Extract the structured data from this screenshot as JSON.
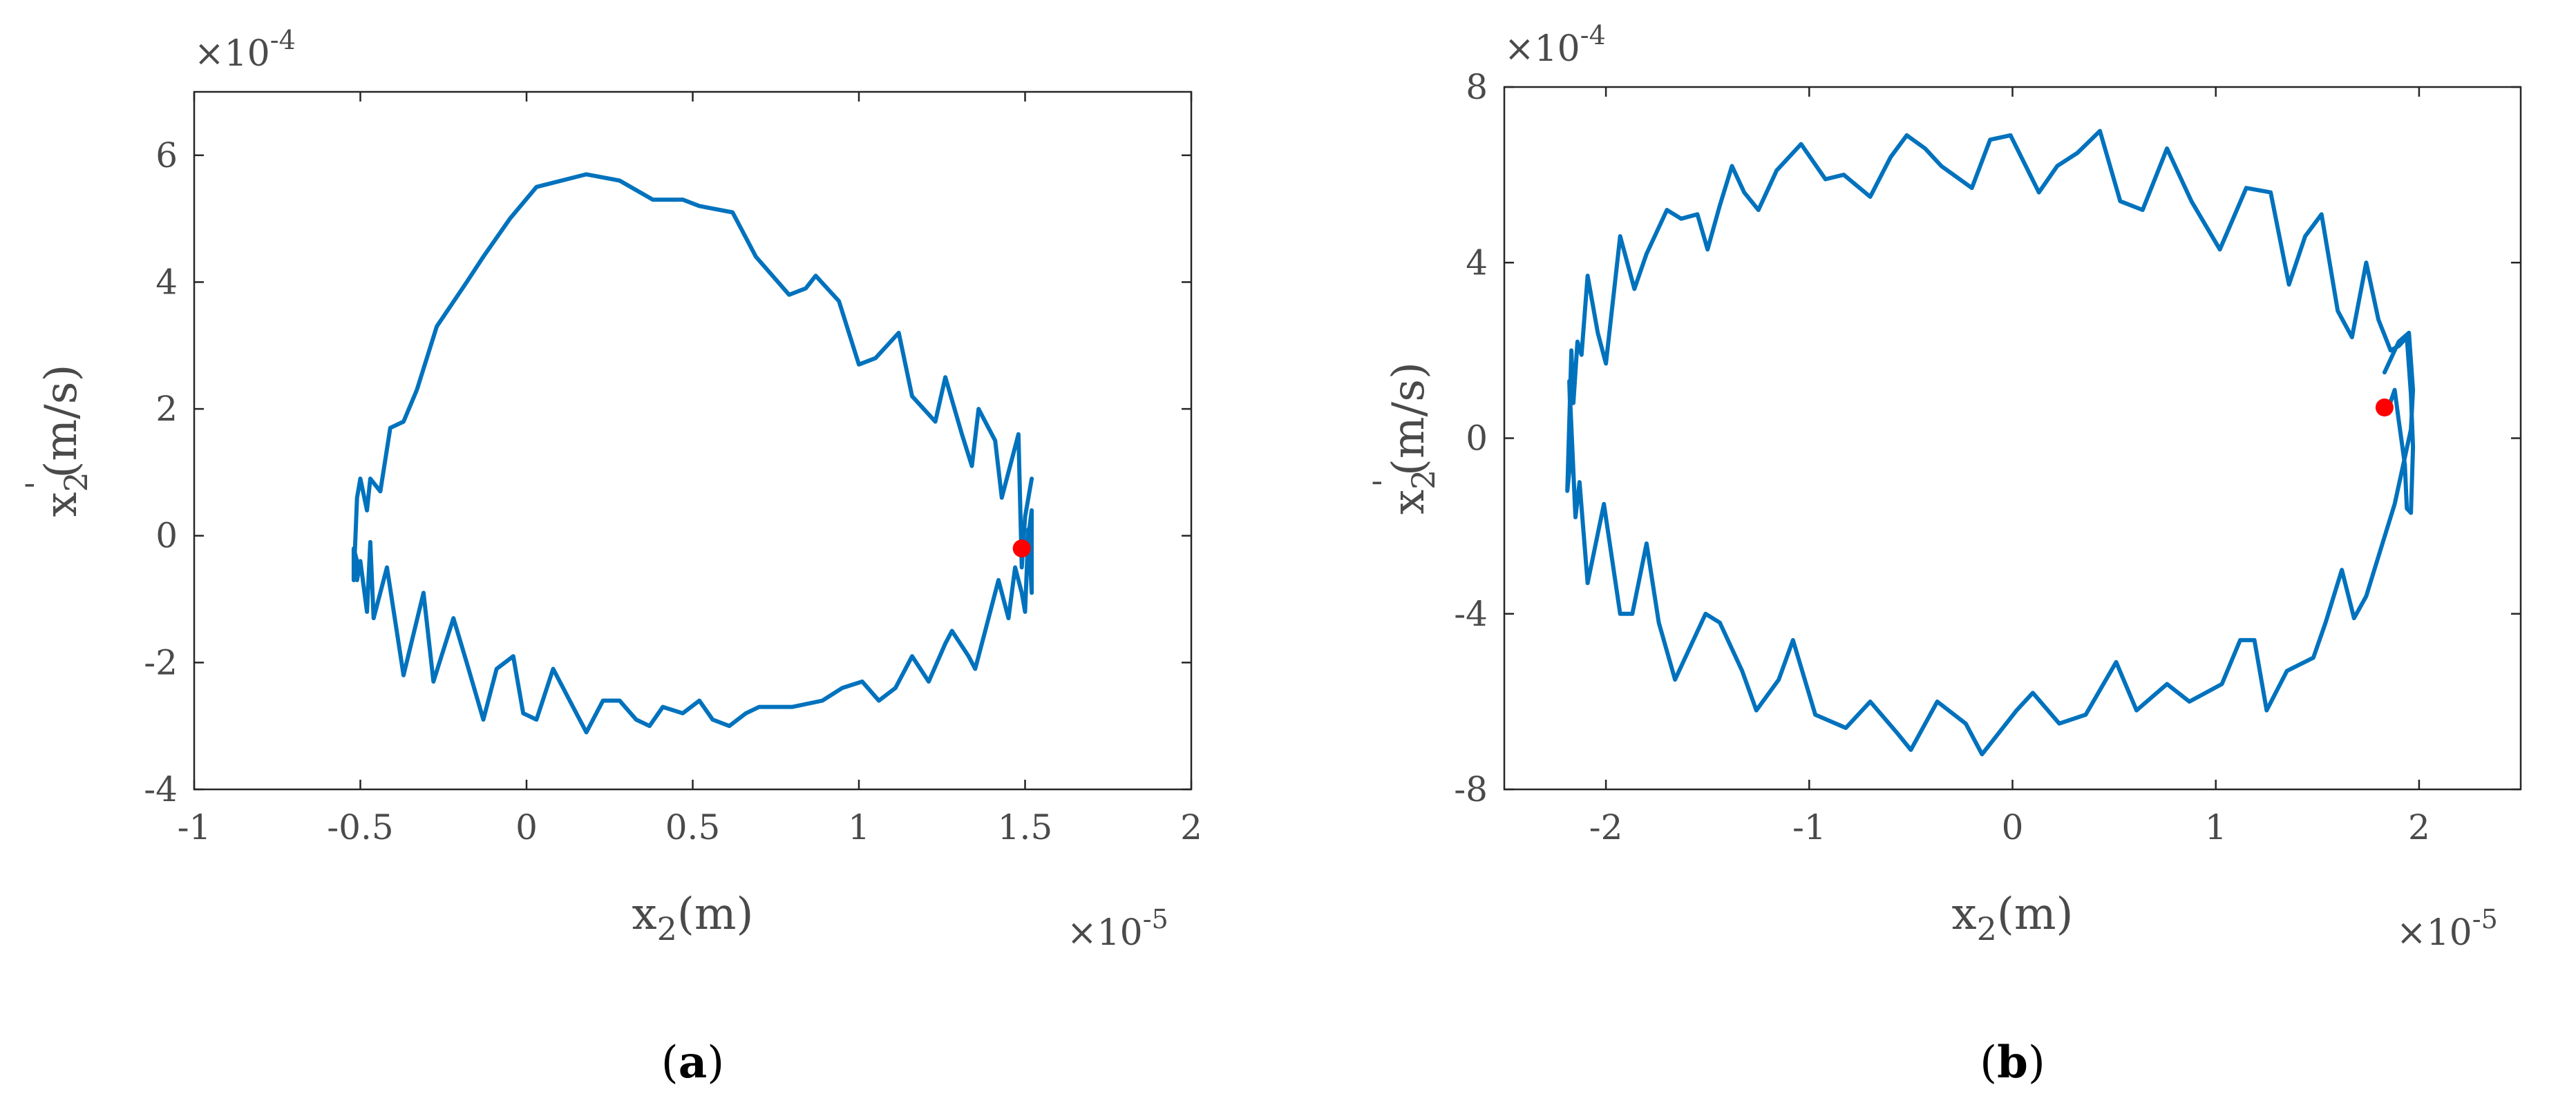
{
  "chart_data": [
    {
      "type": "line",
      "panel_label": "a",
      "xlabel": "x",
      "xlabel_sub": "2",
      "xlabel_unit": "(m)",
      "ylabel": "x",
      "ylabel_sub": "2",
      "ylabel_prime": "'",
      "ylabel_unit": "(m/s)",
      "x_multiplier": "×10",
      "x_exponent": "-5",
      "y_multiplier": "×10",
      "y_exponent": "-4",
      "xlim": [
        -1,
        2
      ],
      "ylim": [
        -4,
        7
      ],
      "xticks": [
        -1,
        -0.5,
        0,
        0.5,
        1,
        1.5,
        2
      ],
      "xtick_labels": [
        "-1",
        "-0.5",
        "0",
        "0.5",
        "1",
        "1.5",
        "2"
      ],
      "yticks": [
        -4,
        -2,
        0,
        2,
        4,
        6
      ],
      "ytick_labels": [
        "-4",
        "-2",
        "0",
        "2",
        "4",
        "6"
      ],
      "line_color": "#0072BD",
      "marker_color": "#FF0000",
      "series": [
        {
          "x": [
            1.52,
            1.5,
            1.49,
            1.48,
            1.43,
            1.41,
            1.36,
            1.34,
            1.31,
            1.26,
            1.23,
            1.16,
            1.12,
            1.05,
            1.0,
            0.94,
            0.87,
            0.84,
            0.79,
            0.69,
            0.62,
            0.52,
            0.47,
            0.38,
            0.28,
            0.18,
            0.03,
            -0.05,
            -0.13,
            -0.18,
            -0.27,
            -0.33,
            -0.37,
            -0.41,
            -0.44,
            -0.47,
            -0.48,
            -0.5,
            -0.51,
            -0.52,
            -0.52,
            -0.51,
            -0.51,
            -0.5,
            -0.48,
            -0.47,
            -0.46,
            -0.42,
            -0.37,
            -0.31,
            -0.28,
            -0.22,
            -0.18,
            -0.13,
            -0.09,
            -0.04,
            -0.01,
            0.03,
            0.08,
            0.14,
            0.18,
            0.23,
            0.28,
            0.33,
            0.37,
            0.41,
            0.47,
            0.52,
            0.56,
            0.61,
            0.66,
            0.7,
            0.8,
            0.89,
            0.95,
            1.01,
            1.06,
            1.11,
            1.16,
            1.21,
            1.26,
            1.28,
            1.33,
            1.35,
            1.38,
            1.42,
            1.45,
            1.47,
            1.49,
            1.5,
            1.51,
            1.52,
            1.52,
            1.51,
            1.5,
            1.49
          ],
          "y": [
            0.9,
            0.3,
            -0.5,
            1.6,
            0.6,
            1.5,
            2.0,
            1.1,
            1.6,
            2.5,
            1.8,
            2.2,
            3.2,
            2.8,
            2.7,
            3.7,
            4.1,
            3.9,
            3.8,
            4.4,
            5.1,
            5.2,
            5.3,
            5.3,
            5.6,
            5.7,
            5.5,
            5.0,
            4.4,
            4.0,
            3.3,
            2.3,
            1.8,
            1.7,
            0.7,
            0.9,
            0.4,
            0.9,
            0.6,
            -0.7,
            -0.2,
            -0.4,
            -0.7,
            -0.4,
            -1.2,
            -0.1,
            -1.3,
            -0.5,
            -2.2,
            -0.9,
            -2.3,
            -1.3,
            -2.0,
            -2.9,
            -2.1,
            -1.9,
            -2.8,
            -2.9,
            -2.1,
            -2.7,
            -3.1,
            -2.6,
            -2.6,
            -2.9,
            -3.0,
            -2.7,
            -2.8,
            -2.6,
            -2.9,
            -3.0,
            -2.8,
            -2.7,
            -2.7,
            -2.6,
            -2.4,
            -2.3,
            -2.6,
            -2.4,
            -1.9,
            -2.3,
            -1.7,
            -1.5,
            -1.9,
            -2.1,
            -1.5,
            -0.7,
            -1.3,
            -0.5,
            -0.9,
            -1.2,
            0.1,
            -0.9,
            0.4,
            0.0,
            -0.2,
            -0.2
          ]
        }
      ],
      "marker": {
        "x": 1.49,
        "y": -0.2
      }
    },
    {
      "type": "line",
      "panel_label": "b",
      "xlabel": "x",
      "xlabel_sub": "2",
      "xlabel_unit": "(m)",
      "ylabel": "x",
      "ylabel_sub": "2",
      "ylabel_prime": "'",
      "ylabel_unit": "(m/s)",
      "x_multiplier": "×10",
      "x_exponent": "-5",
      "y_multiplier": "×10",
      "y_exponent": "-4",
      "xlim": [
        -2.5,
        2.5
      ],
      "ylim": [
        -8,
        8
      ],
      "xticks": [
        -2,
        -1,
        0,
        1,
        2
      ],
      "xtick_labels": [
        "-2",
        "-1",
        "0",
        "1",
        "2"
      ],
      "yticks": [
        -8,
        -4,
        0,
        4,
        8
      ],
      "ytick_labels": [
        "-8",
        "-4",
        "0",
        "4",
        "8"
      ],
      "line_color": "#0072BD",
      "marker_color": "#FF0000",
      "series": [
        {
          "x": [
            1.83,
            1.9,
            1.95,
            1.97,
            1.96,
            1.88,
            1.82,
            1.74,
            1.68,
            1.62,
            1.54,
            1.48,
            1.35,
            1.25,
            1.19,
            1.12,
            1.03,
            0.87,
            0.76,
            0.61,
            0.51,
            0.36,
            0.23,
            0.1,
            0.02,
            -0.15,
            -0.23,
            -0.37,
            -0.5,
            -0.57,
            -0.7,
            -0.82,
            -0.97,
            -1.08,
            -1.15,
            -1.26,
            -1.33,
            -1.44,
            -1.51,
            -1.66,
            -1.74,
            -1.8,
            -1.87,
            -1.93,
            -2.01,
            -2.09,
            -2.13,
            -2.15,
            -2.18,
            -2.17,
            -2.19,
            -2.17,
            -2.16,
            -2.14,
            -2.12,
            -2.09,
            -2.04,
            -2.0,
            -1.93,
            -1.86,
            -1.8,
            -1.7,
            -1.63,
            -1.55,
            -1.5,
            -1.44,
            -1.38,
            -1.32,
            -1.25,
            -1.16,
            -1.04,
            -0.92,
            -0.83,
            -0.7,
            -0.6,
            -0.52,
            -0.43,
            -0.35,
            -0.2,
            -0.11,
            -0.01,
            0.13,
            0.22,
            0.32,
            0.43,
            0.53,
            0.64,
            0.76,
            0.88,
            1.02,
            1.15,
            1.27,
            1.36,
            1.44,
            1.52,
            1.6,
            1.67,
            1.74,
            1.8,
            1.86,
            1.9,
            1.94,
            1.96,
            1.97,
            1.96,
            1.94,
            1.93,
            1.9,
            1.88,
            1.85,
            1.83,
            1.83
          ],
          "y": [
            1.5,
            2.2,
            2.4,
            1.1,
            0.2,
            -1.5,
            -2.4,
            -3.6,
            -4.1,
            -3.0,
            -4.2,
            -5.0,
            -5.3,
            -6.2,
            -4.6,
            -4.6,
            -5.6,
            -6.0,
            -5.6,
            -6.2,
            -5.1,
            -6.3,
            -6.5,
            -5.8,
            -6.2,
            -7.2,
            -6.5,
            -6.0,
            -7.1,
            -6.7,
            -6.0,
            -6.6,
            -6.3,
            -4.6,
            -5.5,
            -6.2,
            -5.3,
            -4.2,
            -4.0,
            -5.5,
            -4.2,
            -2.4,
            -4.0,
            -4.0,
            -1.5,
            -3.3,
            -1.0,
            -1.8,
            1.3,
            -0.3,
            -1.2,
            2.0,
            0.8,
            2.2,
            1.9,
            3.7,
            2.4,
            1.7,
            4.6,
            3.4,
            4.2,
            5.2,
            5.0,
            5.1,
            4.3,
            5.3,
            6.2,
            5.6,
            5.2,
            6.1,
            6.7,
            5.9,
            6.0,
            5.5,
            6.4,
            6.9,
            6.6,
            6.2,
            5.7,
            6.8,
            6.9,
            5.6,
            6.2,
            6.5,
            7.0,
            5.4,
            5.2,
            6.6,
            5.4,
            4.3,
            5.7,
            5.6,
            3.5,
            4.6,
            5.1,
            2.9,
            2.3,
            4.0,
            2.7,
            2.0,
            2.1,
            2.3,
            1.0,
            -0.2,
            -1.7,
            -1.6,
            -0.6,
            0.4,
            1.1,
            0.7,
            0.6,
            0.7
          ]
        }
      ],
      "marker": {
        "x": 1.83,
        "y": 0.7
      }
    }
  ]
}
